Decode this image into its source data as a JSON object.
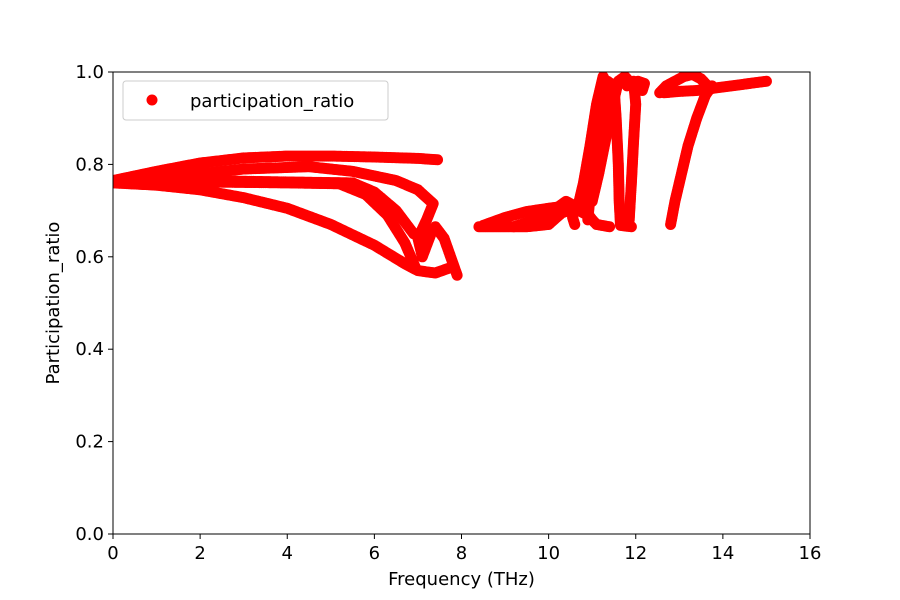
{
  "chart_data": {
    "type": "scatter",
    "title": "",
    "xlabel": "Frequency (THz)",
    "ylabel": "Participation_ratio",
    "xlim": [
      0,
      16
    ],
    "ylim": [
      0,
      1.0
    ],
    "xticks": [
      0,
      2,
      4,
      6,
      8,
      10,
      12,
      14,
      16
    ],
    "yticks": [
      0.0,
      0.2,
      0.4,
      0.6,
      0.8,
      1.0
    ],
    "xtick_labels": [
      "0",
      "2",
      "4",
      "6",
      "8",
      "10",
      "12",
      "14",
      "16"
    ],
    "ytick_labels": [
      "0.0",
      "0.2",
      "0.4",
      "0.6",
      "0.8",
      "1.0"
    ],
    "grid": false,
    "legend": {
      "position": "upper-left",
      "entries": [
        "participation_ratio"
      ]
    },
    "series": [
      {
        "name": "participation_ratio",
        "color": "#ff0000",
        "marker": "circle",
        "branches": [
          [
            [
              0.0,
              0.765
            ],
            [
              1.0,
              0.785
            ],
            [
              2.0,
              0.803
            ],
            [
              3.0,
              0.814
            ],
            [
              4.0,
              0.818
            ],
            [
              5.0,
              0.818
            ],
            [
              6.0,
              0.816
            ],
            [
              7.0,
              0.813
            ],
            [
              7.45,
              0.81
            ]
          ],
          [
            [
              0.0,
              0.76
            ],
            [
              1.5,
              0.775
            ],
            [
              3.0,
              0.79
            ],
            [
              4.5,
              0.795
            ],
            [
              5.5,
              0.785
            ],
            [
              6.5,
              0.765
            ],
            [
              7.0,
              0.745
            ],
            [
              7.35,
              0.715
            ],
            [
              7.2,
              0.68
            ],
            [
              7.0,
              0.64
            ],
            [
              7.1,
              0.6
            ],
            [
              7.3,
              0.65
            ],
            [
              7.4,
              0.665
            ],
            [
              7.6,
              0.64
            ],
            [
              7.75,
              0.6
            ],
            [
              7.9,
              0.56
            ]
          ],
          [
            [
              0.0,
              0.76
            ],
            [
              1.0,
              0.755
            ],
            [
              2.0,
              0.745
            ],
            [
              3.0,
              0.728
            ],
            [
              4.0,
              0.705
            ],
            [
              5.0,
              0.67
            ],
            [
              6.0,
              0.625
            ],
            [
              6.7,
              0.585
            ],
            [
              7.0,
              0.57
            ],
            [
              7.4,
              0.565
            ],
            [
              7.7,
              0.575
            ]
          ],
          [
            [
              0.0,
              0.762
            ],
            [
              2.0,
              0.762
            ],
            [
              4.0,
              0.76
            ],
            [
              5.2,
              0.758
            ],
            [
              5.8,
              0.735
            ],
            [
              6.3,
              0.69
            ],
            [
              6.7,
              0.63
            ],
            [
              6.95,
              0.575
            ]
          ],
          [
            [
              0.0,
              0.762
            ],
            [
              2.0,
              0.765
            ],
            [
              4.0,
              0.762
            ],
            [
              5.5,
              0.76
            ],
            [
              6.0,
              0.74
            ],
            [
              6.5,
              0.7
            ],
            [
              6.9,
              0.65
            ]
          ],
          [
            [
              8.4,
              0.665
            ],
            [
              9.0,
              0.665
            ],
            [
              9.5,
              0.665
            ],
            [
              10.0,
              0.67
            ],
            [
              10.3,
              0.695
            ],
            [
              10.6,
              0.705
            ],
            [
              10.9,
              0.69
            ],
            [
              11.1,
              0.67
            ],
            [
              11.4,
              0.665
            ]
          ],
          [
            [
              8.5,
              0.668
            ],
            [
              9.0,
              0.685
            ],
            [
              9.5,
              0.698
            ],
            [
              10.0,
              0.705
            ],
            [
              10.4,
              0.71
            ],
            [
              10.8,
              0.705
            ],
            [
              11.0,
              0.68
            ]
          ],
          [
            [
              9.2,
              0.665
            ],
            [
              9.7,
              0.68
            ],
            [
              10.1,
              0.7
            ],
            [
              10.4,
              0.72
            ],
            [
              10.6,
              0.71
            ],
            [
              10.55,
              0.685
            ],
            [
              10.6,
              0.67
            ]
          ],
          [
            [
              10.65,
              0.7
            ],
            [
              10.8,
              0.76
            ],
            [
              10.95,
              0.84
            ],
            [
              11.1,
              0.93
            ],
            [
              11.25,
              0.99
            ],
            [
              11.35,
              0.97
            ],
            [
              11.2,
              0.9
            ],
            [
              11.05,
              0.8
            ],
            [
              10.95,
              0.73
            ],
            [
              10.9,
              0.68
            ]
          ],
          [
            [
              11.0,
              0.72
            ],
            [
              11.15,
              0.78
            ],
            [
              11.3,
              0.85
            ],
            [
              11.45,
              0.92
            ],
            [
              11.6,
              0.98
            ],
            [
              11.75,
              0.99
            ],
            [
              11.85,
              0.98
            ]
          ],
          [
            [
              11.35,
              0.98
            ],
            [
              11.5,
              0.97
            ],
            [
              11.55,
              0.9
            ],
            [
              11.6,
              0.8
            ],
            [
              11.62,
              0.72
            ],
            [
              11.65,
              0.668
            ],
            [
              11.9,
              0.665
            ]
          ],
          [
            [
              11.8,
              0.97
            ],
            [
              11.95,
              0.98
            ],
            [
              12.0,
              0.93
            ],
            [
              11.95,
              0.85
            ],
            [
              11.9,
              0.76
            ],
            [
              11.85,
              0.68
            ]
          ],
          [
            [
              12.05,
              0.98
            ],
            [
              12.2,
              0.975
            ],
            [
              12.15,
              0.96
            ]
          ],
          [
            [
              12.55,
              0.955
            ],
            [
              12.7,
              0.97
            ],
            [
              12.9,
              0.98
            ],
            [
              13.1,
              0.99
            ],
            [
              13.3,
              0.995
            ],
            [
              13.5,
              0.985
            ],
            [
              13.65,
              0.97
            ]
          ],
          [
            [
              12.65,
              0.955
            ],
            [
              13.0,
              0.958
            ],
            [
              13.4,
              0.96
            ],
            [
              13.8,
              0.965
            ],
            [
              14.2,
              0.97
            ],
            [
              14.6,
              0.975
            ],
            [
              15.0,
              0.98
            ]
          ],
          [
            [
              12.8,
              0.67
            ],
            [
              12.9,
              0.72
            ],
            [
              13.05,
              0.78
            ],
            [
              13.2,
              0.84
            ],
            [
              13.4,
              0.9
            ],
            [
              13.6,
              0.95
            ],
            [
              13.75,
              0.97
            ]
          ]
        ]
      }
    ]
  }
}
